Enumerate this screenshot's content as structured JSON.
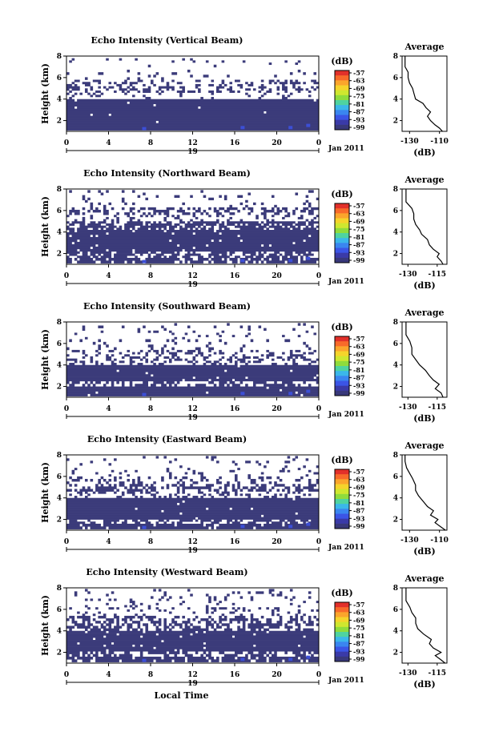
{
  "chart_data": [
    {
      "type": "heatmap",
      "title": "Echo Intensity (Vertical Beam)",
      "ylabel": "Height (km)",
      "y_ticks": [
        "2",
        "4",
        "6",
        "8"
      ],
      "ylim": [
        1.0,
        8.0
      ],
      "x_ticks": [
        "0",
        "4",
        "8",
        "12",
        "16",
        "20",
        "0"
      ],
      "xlim": [
        0,
        24
      ],
      "date_label": "19",
      "month_label": "Jan 2011",
      "colorbar": {
        "unit_label": "(dB)",
        "ticks": [
          "-57",
          "-63",
          "-69",
          "-75",
          "-81",
          "-87",
          "-93",
          "-99"
        ],
        "colors": [
          "#e2302a",
          "#f86a2a",
          "#fba52c",
          "#f5d42b",
          "#cfe72f",
          "#8fdc3c",
          "#4fd3a0",
          "#3bb7ea",
          "#3a86f0",
          "#3b55e6",
          "#3a3aa8",
          "#38387a"
        ]
      },
      "layers": [
        {
          "y_range": [
            1.1,
            4.0
          ],
          "coverage": 0.985
        },
        {
          "y_range": [
            4.0,
            4.6
          ],
          "coverage": 0.12
        },
        {
          "y_range": [
            4.6,
            5.2
          ],
          "coverage": 0.35
        },
        {
          "y_range": [
            5.2,
            5.8
          ],
          "coverage": 0.28
        },
        {
          "y_range": [
            5.8,
            6.5
          ],
          "coverage": 0.07
        },
        {
          "y_range": [
            6.5,
            7.2
          ],
          "coverage": 0.03
        },
        {
          "y_range": [
            7.2,
            7.8
          ],
          "coverage": 0.05
        }
      ],
      "average_profile": {
        "title": "Average",
        "xlabel": "(dB)",
        "x_ticks": [
          "-130",
          "-110"
        ],
        "xlim": [
          -135,
          -105
        ],
        "y_ticks": [
          "2",
          "4",
          "6",
          "8"
        ],
        "ylim": [
          1.0,
          8.0
        ],
        "points": [
          [
            1.0,
            -108
          ],
          [
            1.3,
            -110
          ],
          [
            1.6,
            -113
          ],
          [
            2.0,
            -116
          ],
          [
            2.4,
            -118
          ],
          [
            2.8,
            -116
          ],
          [
            3.2,
            -119
          ],
          [
            3.6,
            -121
          ],
          [
            4.0,
            -126
          ],
          [
            4.5,
            -127
          ],
          [
            5.0,
            -128
          ],
          [
            5.5,
            -130
          ],
          [
            6.0,
            -131
          ],
          [
            6.5,
            -131
          ],
          [
            7.0,
            -133
          ],
          [
            7.5,
            -133
          ],
          [
            8.0,
            -133
          ]
        ]
      }
    },
    {
      "type": "heatmap",
      "title": "Echo Intensity (Northward Beam)",
      "ylabel": "Height (km)",
      "y_ticks": [
        "2",
        "4",
        "6",
        "8"
      ],
      "ylim": [
        1.0,
        8.0
      ],
      "x_ticks": [
        "0",
        "4",
        "8",
        "12",
        "16",
        "20",
        "0"
      ],
      "xlim": [
        0,
        24
      ],
      "date_label": "19",
      "month_label": "Jan 2011",
      "colorbar": {
        "unit_label": "(dB)",
        "ticks": [
          "-57",
          "-63",
          "-69",
          "-75",
          "-81",
          "-87",
          "-93",
          "-99"
        ],
        "colors": [
          "#e2302a",
          "#f86a2a",
          "#fba52c",
          "#f5d42b",
          "#cfe72f",
          "#8fdc3c",
          "#4fd3a0",
          "#3bb7ea",
          "#3a86f0",
          "#3b55e6",
          "#3a3aa8",
          "#38387a"
        ]
      },
      "layers": [
        {
          "y_range": [
            1.1,
            1.6
          ],
          "coverage": 0.8
        },
        {
          "y_range": [
            1.6,
            2.2
          ],
          "coverage": 0.6
        },
        {
          "y_range": [
            2.2,
            4.2
          ],
          "coverage": 0.96
        },
        {
          "y_range": [
            4.2,
            5.0
          ],
          "coverage": 0.7
        },
        {
          "y_range": [
            5.0,
            5.6
          ],
          "coverage": 0.2
        },
        {
          "y_range": [
            5.6,
            6.3
          ],
          "coverage": 0.45
        },
        {
          "y_range": [
            6.3,
            7.2
          ],
          "coverage": 0.06
        },
        {
          "y_range": [
            7.2,
            7.9
          ],
          "coverage": 0.1
        }
      ],
      "average_profile": {
        "title": "Average",
        "xlabel": "(dB)",
        "x_ticks": [
          "-130",
          "-115"
        ],
        "xlim": [
          -133,
          -110
        ],
        "y_ticks": [
          "2",
          "4",
          "6",
          "8"
        ],
        "ylim": [
          1.0,
          8.0
        ],
        "points": [
          [
            1.0,
            -112
          ],
          [
            1.3,
            -113
          ],
          [
            1.7,
            -115
          ],
          [
            2.0,
            -114
          ],
          [
            2.4,
            -117
          ],
          [
            2.8,
            -119
          ],
          [
            3.3,
            -120
          ],
          [
            3.8,
            -123
          ],
          [
            4.2,
            -124
          ],
          [
            4.7,
            -126
          ],
          [
            5.2,
            -127
          ],
          [
            5.7,
            -127
          ],
          [
            6.2,
            -128
          ],
          [
            6.8,
            -131
          ],
          [
            7.3,
            -131
          ],
          [
            8.0,
            -131
          ]
        ]
      }
    },
    {
      "type": "heatmap",
      "title": "Echo Intensity (Southward Beam)",
      "ylabel": "Height (km)",
      "y_ticks": [
        "2",
        "4",
        "6",
        "8"
      ],
      "ylim": [
        1.0,
        8.0
      ],
      "x_ticks": [
        "0",
        "4",
        "8",
        "12",
        "16",
        "20",
        "0"
      ],
      "xlim": [
        0,
        24
      ],
      "date_label": "19",
      "month_label": "Jan 2011",
      "colorbar": {
        "unit_label": "(dB)",
        "ticks": [
          "-57",
          "-63",
          "-69",
          "-75",
          "-81",
          "-87",
          "-93",
          "-99"
        ],
        "colors": [
          "#e2302a",
          "#f86a2a",
          "#fba52c",
          "#f5d42b",
          "#cfe72f",
          "#8fdc3c",
          "#4fd3a0",
          "#3bb7ea",
          "#3a86f0",
          "#3b55e6",
          "#3a3aa8",
          "#38387a"
        ]
      },
      "layers": [
        {
          "y_range": [
            1.1,
            2.0
          ],
          "coverage": 0.98
        },
        {
          "y_range": [
            2.0,
            2.5
          ],
          "coverage": 0.5
        },
        {
          "y_range": [
            2.5,
            4.0
          ],
          "coverage": 0.97
        },
        {
          "y_range": [
            4.0,
            4.6
          ],
          "coverage": 0.4
        },
        {
          "y_range": [
            4.6,
            5.4
          ],
          "coverage": 0.3
        },
        {
          "y_range": [
            5.4,
            6.4
          ],
          "coverage": 0.12
        },
        {
          "y_range": [
            6.4,
            7.2
          ],
          "coverage": 0.04
        },
        {
          "y_range": [
            7.2,
            7.9
          ],
          "coverage": 0.08
        }
      ],
      "average_profile": {
        "title": "Average",
        "xlabel": "(dB)",
        "x_ticks": [
          "-130",
          "-115"
        ],
        "xlim": [
          -133,
          -110
        ],
        "y_ticks": [
          "2",
          "4",
          "6",
          "8"
        ],
        "ylim": [
          1.0,
          8.0
        ],
        "points": [
          [
            1.0,
            -112
          ],
          [
            1.4,
            -113
          ],
          [
            1.8,
            -116
          ],
          [
            2.2,
            -114
          ],
          [
            2.6,
            -117
          ],
          [
            3.0,
            -119
          ],
          [
            3.5,
            -121
          ],
          [
            4.0,
            -124
          ],
          [
            4.5,
            -126
          ],
          [
            5.0,
            -128
          ],
          [
            5.6,
            -128
          ],
          [
            6.2,
            -129
          ],
          [
            6.8,
            -131
          ],
          [
            7.4,
            -131
          ],
          [
            8.0,
            -131
          ]
        ]
      }
    },
    {
      "type": "heatmap",
      "title": "Echo Intensity (Eastward Beam)",
      "ylabel": "Height (km)",
      "y_ticks": [
        "2",
        "4",
        "6",
        "8"
      ],
      "ylim": [
        1.0,
        8.0
      ],
      "x_ticks": [
        "0",
        "4",
        "8",
        "12",
        "16",
        "20",
        "0"
      ],
      "xlim": [
        0,
        24
      ],
      "date_label": "19",
      "month_label": "Jan 2011",
      "colorbar": {
        "unit_label": "(dB)",
        "ticks": [
          "-57",
          "-63",
          "-69",
          "-75",
          "-81",
          "-87",
          "-93",
          "-99"
        ],
        "colors": [
          "#e2302a",
          "#f86a2a",
          "#fba52c",
          "#f5d42b",
          "#cfe72f",
          "#8fdc3c",
          "#4fd3a0",
          "#3bb7ea",
          "#3a86f0",
          "#3b55e6",
          "#3a3aa8",
          "#38387a"
        ]
      },
      "layers": [
        {
          "y_range": [
            1.1,
            1.6
          ],
          "coverage": 0.9
        },
        {
          "y_range": [
            1.6,
            2.0
          ],
          "coverage": 0.55
        },
        {
          "y_range": [
            2.0,
            4.0
          ],
          "coverage": 0.98
        },
        {
          "y_range": [
            4.0,
            4.6
          ],
          "coverage": 0.3
        },
        {
          "y_range": [
            4.6,
            5.3
          ],
          "coverage": 0.5
        },
        {
          "y_range": [
            5.3,
            6.0
          ],
          "coverage": 0.25
        },
        {
          "y_range": [
            6.0,
            6.8
          ],
          "coverage": 0.08
        },
        {
          "y_range": [
            6.8,
            7.9
          ],
          "coverage": 0.06
        }
      ],
      "average_profile": {
        "title": "Average",
        "xlabel": "(dB)",
        "x_ticks": [
          "-130",
          "-110"
        ],
        "xlim": [
          -135,
          -105
        ],
        "y_ticks": [
          "2",
          "4",
          "6",
          "8"
        ],
        "ylim": [
          1.0,
          8.0
        ],
        "points": [
          [
            1.0,
            -106
          ],
          [
            1.3,
            -109
          ],
          [
            1.7,
            -113
          ],
          [
            2.0,
            -111
          ],
          [
            2.4,
            -116
          ],
          [
            2.8,
            -114
          ],
          [
            3.2,
            -118
          ],
          [
            3.7,
            -121
          ],
          [
            4.2,
            -124
          ],
          [
            4.7,
            -126
          ],
          [
            5.2,
            -126
          ],
          [
            5.8,
            -128
          ],
          [
            6.3,
            -130
          ],
          [
            6.8,
            -132
          ],
          [
            7.4,
            -133
          ],
          [
            8.0,
            -133
          ]
        ]
      }
    },
    {
      "type": "heatmap",
      "title": "Echo Intensity (Westward Beam)",
      "ylabel": "Height (km)",
      "xlabel": "Local Time",
      "y_ticks": [
        "2",
        "4",
        "6",
        "8"
      ],
      "ylim": [
        1.0,
        8.0
      ],
      "x_ticks": [
        "0",
        "4",
        "8",
        "12",
        "16",
        "20",
        "0"
      ],
      "xlim": [
        0,
        24
      ],
      "date_label": "19",
      "month_label": "Jan 2011",
      "colorbar": {
        "unit_label": "(dB)",
        "ticks": [
          "-57",
          "-63",
          "-69",
          "-75",
          "-81",
          "-87",
          "-93",
          "-99"
        ],
        "colors": [
          "#e2302a",
          "#f86a2a",
          "#fba52c",
          "#f5d42b",
          "#cfe72f",
          "#8fdc3c",
          "#4fd3a0",
          "#3bb7ea",
          "#3a86f0",
          "#3b55e6",
          "#3a3aa8",
          "#38387a"
        ]
      },
      "layers": [
        {
          "y_range": [
            1.1,
            1.6
          ],
          "coverage": 0.85
        },
        {
          "y_range": [
            1.6,
            2.1
          ],
          "coverage": 0.5
        },
        {
          "y_range": [
            2.1,
            4.0
          ],
          "coverage": 0.97
        },
        {
          "y_range": [
            4.0,
            4.7
          ],
          "coverage": 0.55
        },
        {
          "y_range": [
            4.7,
            5.4
          ],
          "coverage": 0.45
        },
        {
          "y_range": [
            5.4,
            6.2
          ],
          "coverage": 0.15
        },
        {
          "y_range": [
            6.2,
            7.0
          ],
          "coverage": 0.08
        },
        {
          "y_range": [
            7.0,
            7.9
          ],
          "coverage": 0.12
        }
      ],
      "average_profile": {
        "title": "Average",
        "xlabel": "(dB)",
        "x_ticks": [
          "-130",
          "-115"
        ],
        "xlim": [
          -133,
          -110
        ],
        "y_ticks": [
          "2",
          "4",
          "6",
          "8"
        ],
        "ylim": [
          1.0,
          8.0
        ],
        "points": [
          [
            1.0,
            -111
          ],
          [
            1.3,
            -113
          ],
          [
            1.7,
            -116
          ],
          [
            2.0,
            -113
          ],
          [
            2.4,
            -117
          ],
          [
            2.8,
            -119
          ],
          [
            3.2,
            -118
          ],
          [
            3.7,
            -122
          ],
          [
            4.2,
            -125
          ],
          [
            4.7,
            -126
          ],
          [
            5.2,
            -126
          ],
          [
            5.7,
            -128
          ],
          [
            6.2,
            -129
          ],
          [
            6.8,
            -131
          ],
          [
            7.4,
            -131
          ],
          [
            8.0,
            -131
          ]
        ]
      }
    }
  ]
}
